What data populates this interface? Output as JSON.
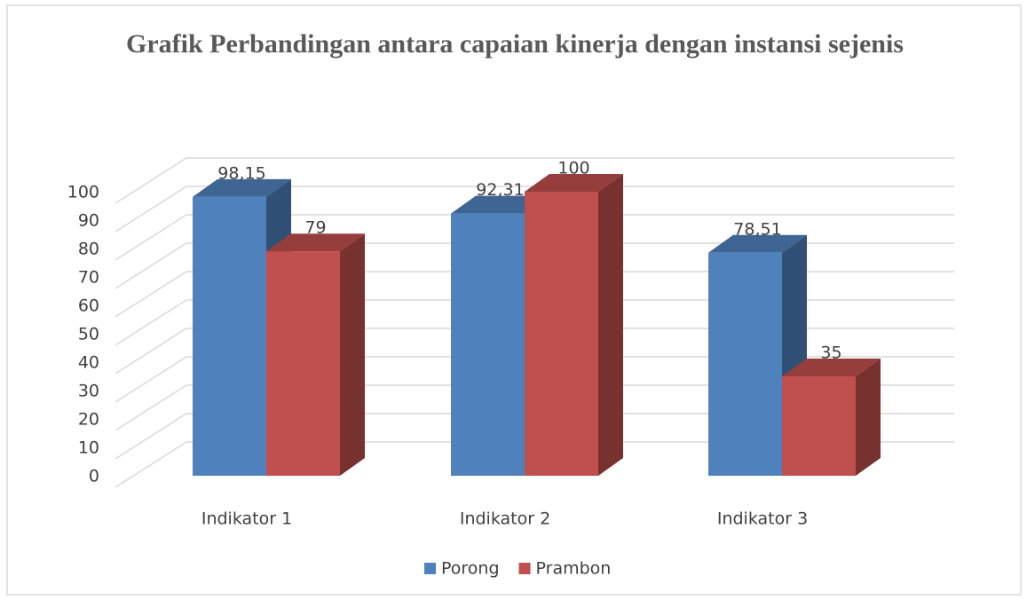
{
  "chart_data": {
    "type": "bar3d",
    "title": "Grafik Perbandingan antara capaian kinerja dengan instansi sejenis",
    "categories": [
      "Indikator 1",
      "Indikator 2",
      "Indikator 3"
    ],
    "series": [
      {
        "name": "Porong",
        "color": "#4f81bd",
        "values": [
          98.15,
          92.31,
          78.51
        ],
        "value_labels": [
          "98,15",
          "92,31",
          "78,51"
        ]
      },
      {
        "name": "Prambon",
        "color": "#c0504d",
        "values": [
          79,
          100,
          35
        ]
      }
    ],
    "ylim": [
      0,
      100
    ],
    "yticks": [
      0,
      10,
      20,
      30,
      40,
      50,
      60,
      70,
      80,
      90,
      100
    ],
    "grid": true,
    "legend": "bottom"
  }
}
